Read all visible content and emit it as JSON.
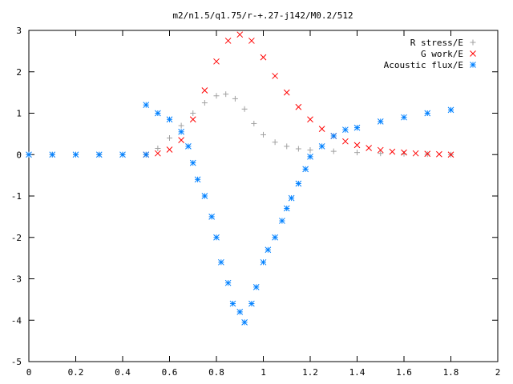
{
  "chart_data": {
    "type": "scatter",
    "title": "m2/n1.5/q1.75/r-+.27-j142/M0.2/512",
    "xlabel": "",
    "ylabel": "",
    "xlim": [
      0,
      2
    ],
    "ylim": [
      -5,
      3
    ],
    "x_ticks": [
      "0",
      "0.2",
      "0.4",
      "0.6",
      "0.8",
      "1",
      "1.2",
      "1.4",
      "1.6",
      "1.8",
      "2"
    ],
    "y_ticks": [
      "3",
      "2",
      "1",
      "0",
      "-1",
      "-2",
      "-3",
      "-4",
      "-5"
    ],
    "grid": false,
    "legend_position": "top-right",
    "series": [
      {
        "name": "R stress/E",
        "marker": "plus",
        "color": "#a0a0a0",
        "x": [
          0.0,
          0.1,
          0.2,
          0.3,
          0.4,
          0.5,
          0.55,
          0.6,
          0.65,
          0.7,
          0.75,
          0.8,
          0.84,
          0.88,
          0.92,
          0.96,
          1.0,
          1.05,
          1.1,
          1.15,
          1.2,
          1.3,
          1.4,
          1.5,
          1.6,
          1.7,
          1.8
        ],
        "y": [
          0.0,
          0.0,
          0.0,
          0.0,
          0.0,
          0.0,
          0.15,
          0.4,
          0.7,
          1.0,
          1.25,
          1.42,
          1.46,
          1.35,
          1.1,
          0.75,
          0.48,
          0.3,
          0.2,
          0.14,
          0.11,
          0.08,
          0.05,
          0.03,
          0.02,
          0.01,
          0.0
        ]
      },
      {
        "name": "G work/E",
        "marker": "cross",
        "color": "#ff0000",
        "x": [
          0.5,
          0.55,
          0.6,
          0.65,
          0.7,
          0.75,
          0.8,
          0.85,
          0.9,
          0.95,
          1.0,
          1.05,
          1.1,
          1.15,
          1.2,
          1.25,
          1.3,
          1.35,
          1.4,
          1.45,
          1.5,
          1.55,
          1.6,
          1.65,
          1.7,
          1.75,
          1.8
        ],
        "y": [
          0.0,
          0.03,
          0.12,
          0.35,
          0.85,
          1.55,
          2.25,
          2.75,
          2.9,
          2.75,
          2.35,
          1.9,
          1.5,
          1.15,
          0.85,
          0.62,
          0.45,
          0.32,
          0.23,
          0.16,
          0.11,
          0.07,
          0.05,
          0.03,
          0.02,
          0.01,
          0.0
        ]
      },
      {
        "name": "Acoustic flux/E",
        "marker": "star",
        "color": "#0080ff",
        "x": [
          0.0,
          0.1,
          0.2,
          0.3,
          0.4,
          0.5,
          0.5,
          0.55,
          0.6,
          0.65,
          0.68,
          0.7,
          0.72,
          0.75,
          0.78,
          0.8,
          0.82,
          0.85,
          0.87,
          0.9,
          0.92,
          0.95,
          0.97,
          1.0,
          1.02,
          1.05,
          1.08,
          1.1,
          1.12,
          1.15,
          1.18,
          1.2,
          1.25,
          1.3,
          1.35,
          1.4,
          1.5,
          1.6,
          1.7,
          1.8
        ],
        "y": [
          0.0,
          0.0,
          0.0,
          0.0,
          0.0,
          0.0,
          1.2,
          1.0,
          0.85,
          0.55,
          0.2,
          -0.2,
          -0.6,
          -1.0,
          -1.5,
          -2.0,
          -2.6,
          -3.1,
          -3.6,
          -3.8,
          -4.05,
          -3.6,
          -3.2,
          -2.6,
          -2.3,
          -2.0,
          -1.6,
          -1.3,
          -1.05,
          -0.7,
          -0.35,
          -0.05,
          0.2,
          0.45,
          0.6,
          0.65,
          0.8,
          0.9,
          1.0,
          1.08
        ]
      }
    ]
  }
}
